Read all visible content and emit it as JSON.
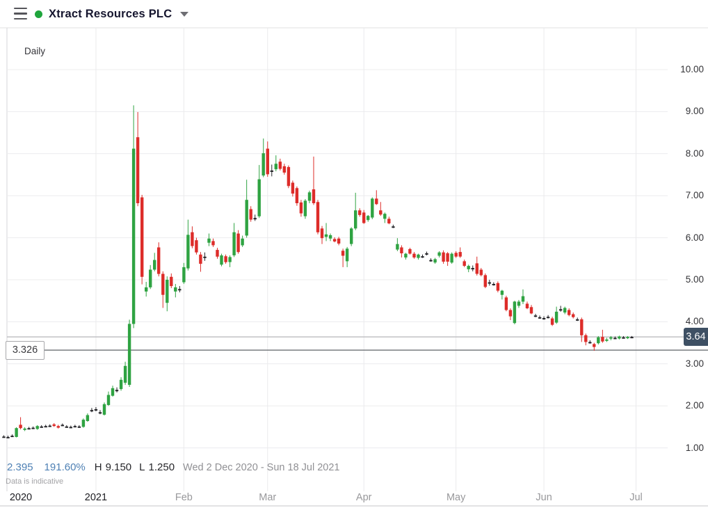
{
  "header": {
    "title": "Xtract Resources PLC",
    "status_dot_color": "#1fa53c"
  },
  "chart": {
    "interval_label": "Daily",
    "last_price_label": "3.64",
    "level_label": "3.326"
  },
  "status_bar": {
    "change_abs": "2.395",
    "change_pct": "191.60%",
    "high_label": "H",
    "high": "9.150",
    "low_label": "L",
    "low": "1.250",
    "date_range": "Wed 2 Dec 2020 - Sun 18 Jul 2021",
    "note": "Data is indicative"
  },
  "chart_data": {
    "type": "candlestick",
    "title": "Xtract Resources PLC",
    "interval": "Daily",
    "date_range": "Wed 2 Dec 2020 - Sun 18 Jul 2021",
    "period_high": 9.15,
    "period_low": 1.25,
    "last_price": 3.64,
    "indicative_level": 3.326,
    "grid": true,
    "y_axis": {
      "min": 1,
      "max": 10,
      "ticks": [
        10,
        9,
        8,
        7,
        6,
        5,
        4,
        3,
        2,
        1
      ],
      "tick_labels": [
        "10.00",
        "9.00",
        "8.00",
        "7.00",
        "6.00",
        "5.00",
        "4.00",
        "3.00",
        "2.00",
        "1.00"
      ]
    },
    "x_axis": {
      "boundaries": [
        {
          "label": "2020",
          "index": 0,
          "bold": true,
          "gridline": false,
          "label_x": 30
        },
        {
          "label": "2021",
          "index": 22,
          "bold": true,
          "gridline": true
        },
        {
          "label": "Feb",
          "index": 43,
          "bold": false,
          "gridline": true
        },
        {
          "label": "Mar",
          "index": 63,
          "bold": false,
          "gridline": true
        },
        {
          "label": "Apr",
          "index": 86,
          "bold": false,
          "gridline": true
        },
        {
          "label": "May",
          "index": 108,
          "bold": false,
          "gridline": true
        },
        {
          "label": "Jun",
          "index": 129,
          "bold": false,
          "gridline": true
        },
        {
          "label": "Jul",
          "index": 151,
          "bold": false,
          "gridline": true
        }
      ]
    },
    "colors": {
      "up": "#2fa342",
      "down": "#dd2c29",
      "neutral": "#26262a",
      "grid": "#ececee",
      "last_price_line": "#b6b6ba",
      "level_line": "#5f6267"
    },
    "candles_format": [
      "open",
      "high",
      "low",
      "close"
    ],
    "candles": [
      [
        1.27,
        1.3,
        1.25,
        1.27
      ],
      [
        1.26,
        1.29,
        1.25,
        1.26
      ],
      [
        1.29,
        1.32,
        1.26,
        1.29
      ],
      [
        1.26,
        1.49,
        1.25,
        1.47
      ],
      [
        1.55,
        1.73,
        1.44,
        1.47
      ],
      [
        1.43,
        1.49,
        1.4,
        1.46
      ],
      [
        1.47,
        1.5,
        1.44,
        1.47
      ],
      [
        1.48,
        1.51,
        1.45,
        1.48
      ],
      [
        1.45,
        1.54,
        1.43,
        1.52
      ],
      [
        1.51,
        1.54,
        1.48,
        1.51
      ],
      [
        1.52,
        1.55,
        1.49,
        1.52
      ],
      [
        1.53,
        1.56,
        1.5,
        1.53
      ],
      [
        1.56,
        1.59,
        1.5,
        1.52
      ],
      [
        1.52,
        1.55,
        1.46,
        1.48
      ],
      [
        1.55,
        1.58,
        1.52,
        1.55
      ],
      [
        1.51,
        1.54,
        1.48,
        1.51
      ],
      [
        1.5,
        1.53,
        1.47,
        1.5
      ],
      [
        1.52,
        1.55,
        1.49,
        1.52
      ],
      [
        1.51,
        1.54,
        1.48,
        1.51
      ],
      [
        1.5,
        1.7,
        1.48,
        1.67
      ],
      [
        1.64,
        1.82,
        1.62,
        1.78
      ],
      [
        1.9,
        1.95,
        1.85,
        1.9
      ],
      [
        1.92,
        1.97,
        1.87,
        1.92
      ],
      [
        1.85,
        1.9,
        1.8,
        1.85
      ],
      [
        1.79,
        2.08,
        1.77,
        2.04
      ],
      [
        2.02,
        2.34,
        2.0,
        2.26
      ],
      [
        2.24,
        2.48,
        2.22,
        2.42
      ],
      [
        2.38,
        2.44,
        2.32,
        2.38
      ],
      [
        2.4,
        2.68,
        2.36,
        2.62
      ],
      [
        2.55,
        3.05,
        2.5,
        2.95
      ],
      [
        2.5,
        4.05,
        2.45,
        3.95
      ],
      [
        3.95,
        9.15,
        3.85,
        8.12
      ],
      [
        8.39,
        8.99,
        6.75,
        6.82
      ],
      [
        6.96,
        7.02,
        4.89,
        5.07
      ],
      [
        4.72,
        4.95,
        4.6,
        4.82
      ],
      [
        4.82,
        5.35,
        4.78,
        5.24
      ],
      [
        5.24,
        5.64,
        5.2,
        5.47
      ],
      [
        5.77,
        5.89,
        5.08,
        5.14
      ],
      [
        5.14,
        5.2,
        4.33,
        4.64
      ],
      [
        4.45,
        5.08,
        4.25,
        5.0
      ],
      [
        5.07,
        5.15,
        4.8,
        4.85
      ],
      [
        4.72,
        4.9,
        4.58,
        4.82
      ],
      [
        4.78,
        4.85,
        4.7,
        4.78
      ],
      [
        4.94,
        5.4,
        4.9,
        5.3
      ],
      [
        5.27,
        6.43,
        5.22,
        6.07
      ],
      [
        6.13,
        6.27,
        5.75,
        5.8
      ],
      [
        5.94,
        6.0,
        5.6,
        5.65
      ],
      [
        5.6,
        5.66,
        5.19,
        5.38
      ],
      [
        5.55,
        5.65,
        5.45,
        5.55
      ],
      [
        5.88,
        6.1,
        5.8,
        5.98
      ],
      [
        5.92,
        5.98,
        5.78,
        5.82
      ],
      [
        5.71,
        5.76,
        5.5,
        5.55
      ],
      [
        5.36,
        5.62,
        5.32,
        5.58
      ],
      [
        5.56,
        5.6,
        5.38,
        5.42
      ],
      [
        5.42,
        5.58,
        5.3,
        5.54
      ],
      [
        5.58,
        6.35,
        5.54,
        6.13
      ],
      [
        6.1,
        6.18,
        5.62,
        5.66
      ],
      [
        5.82,
        6.05,
        5.78,
        5.98
      ],
      [
        6.05,
        7.38,
        6.0,
        6.9
      ],
      [
        6.68,
        6.75,
        6.38,
        6.43
      ],
      [
        6.47,
        6.55,
        6.4,
        6.47
      ],
      [
        6.51,
        7.73,
        6.47,
        7.39
      ],
      [
        7.48,
        8.36,
        7.44,
        8.01
      ],
      [
        8.12,
        8.29,
        7.45,
        7.51
      ],
      [
        7.6,
        7.74,
        7.46,
        7.6
      ],
      [
        7.63,
        7.96,
        7.58,
        7.76
      ],
      [
        7.81,
        7.88,
        7.6,
        7.64
      ],
      [
        7.7,
        7.76,
        7.5,
        7.55
      ],
      [
        7.68,
        7.72,
        7.18,
        7.23
      ],
      [
        7.31,
        7.36,
        6.98,
        7.05
      ],
      [
        7.18,
        7.22,
        6.76,
        6.82
      ],
      [
        6.84,
        6.9,
        6.5,
        6.58
      ],
      [
        6.51,
        6.92,
        6.45,
        6.88
      ],
      [
        6.88,
        7.12,
        6.82,
        7.08
      ],
      [
        7.15,
        7.93,
        6.78,
        6.82
      ],
      [
        6.85,
        6.9,
        6.08,
        6.13
      ],
      [
        6.22,
        6.28,
        5.85,
        5.99
      ],
      [
        6.02,
        6.35,
        5.92,
        6.08
      ],
      [
        5.98,
        6.1,
        5.92,
        6.06
      ],
      [
        5.97,
        6.01,
        5.89,
        5.91
      ],
      [
        5.98,
        6.02,
        5.82,
        5.86
      ],
      [
        5.69,
        5.74,
        5.3,
        5.57
      ],
      [
        5.44,
        5.78,
        5.3,
        5.74
      ],
      [
        5.85,
        6.25,
        5.8,
        6.22
      ],
      [
        6.22,
        7.07,
        6.18,
        6.65
      ],
      [
        6.65,
        6.7,
        6.5,
        6.54
      ],
      [
        6.6,
        6.66,
        6.33,
        6.35
      ],
      [
        6.42,
        6.54,
        6.38,
        6.52
      ],
      [
        6.48,
        6.96,
        6.44,
        6.93
      ],
      [
        6.93,
        7.13,
        6.78,
        6.8
      ],
      [
        6.65,
        6.85,
        6.52,
        6.55
      ],
      [
        6.45,
        6.6,
        6.35,
        6.57
      ],
      [
        6.45,
        6.5,
        6.32,
        6.34
      ],
      [
        6.27,
        6.31,
        6.23,
        6.27
      ],
      [
        5.72,
        5.99,
        5.68,
        5.85
      ],
      [
        5.77,
        5.82,
        5.53,
        5.63
      ],
      [
        5.53,
        5.64,
        5.48,
        5.62
      ],
      [
        5.73,
        5.76,
        5.6,
        5.62
      ],
      [
        5.62,
        5.66,
        5.5,
        5.53
      ],
      [
        5.52,
        5.62,
        5.48,
        5.6
      ],
      [
        5.56,
        5.6,
        5.52,
        5.56
      ],
      [
        5.63,
        5.67,
        5.58,
        5.63
      ],
      [
        5.47,
        5.51,
        5.43,
        5.47
      ],
      [
        5.41,
        5.52,
        5.38,
        5.49
      ],
      [
        5.57,
        5.68,
        5.53,
        5.65
      ],
      [
        5.65,
        5.7,
        5.38,
        5.43
      ],
      [
        5.63,
        5.66,
        5.33,
        5.43
      ],
      [
        5.41,
        5.65,
        5.38,
        5.62
      ],
      [
        5.64,
        5.68,
        5.52,
        5.55
      ],
      [
        5.66,
        5.77,
        5.52,
        5.55
      ],
      [
        5.44,
        5.48,
        5.3,
        5.33
      ],
      [
        5.25,
        5.36,
        5.18,
        5.33
      ],
      [
        5.28,
        5.34,
        5.2,
        5.28
      ],
      [
        5.39,
        5.55,
        5.1,
        5.14
      ],
      [
        5.24,
        5.28,
        5.08,
        5.11
      ],
      [
        5.11,
        5.15,
        4.8,
        4.83
      ],
      [
        4.94,
        5.0,
        4.86,
        4.94
      ],
      [
        4.9,
        4.94,
        4.86,
        4.9
      ],
      [
        4.92,
        4.96,
        4.7,
        4.74
      ],
      [
        4.64,
        4.76,
        4.53,
        4.74
      ],
      [
        4.58,
        4.62,
        4.25,
        4.28
      ],
      [
        4.28,
        4.32,
        4.04,
        4.13
      ],
      [
        3.97,
        4.5,
        3.94,
        4.48
      ],
      [
        4.38,
        4.52,
        4.33,
        4.48
      ],
      [
        4.48,
        4.77,
        4.42,
        4.61
      ],
      [
        4.43,
        4.48,
        4.3,
        4.32
      ],
      [
        4.35,
        4.4,
        4.18,
        4.2
      ],
      [
        4.15,
        4.19,
        4.11,
        4.15
      ],
      [
        4.11,
        4.15,
        4.07,
        4.11
      ],
      [
        4.09,
        4.13,
        4.05,
        4.09
      ],
      [
        4.12,
        4.16,
        4.08,
        4.12
      ],
      [
        4.08,
        4.12,
        3.9,
        3.93
      ],
      [
        3.98,
        4.36,
        3.95,
        4.24
      ],
      [
        4.3,
        4.38,
        4.24,
        4.3
      ],
      [
        4.22,
        4.36,
        4.18,
        4.33
      ],
      [
        4.28,
        4.32,
        4.13,
        4.16
      ],
      [
        4.18,
        4.22,
        4.08,
        4.11
      ],
      [
        4.06,
        4.1,
        4.02,
        4.06
      ],
      [
        4.06,
        4.1,
        3.52,
        3.68
      ],
      [
        3.68,
        3.72,
        3.44,
        3.52
      ],
      [
        3.52,
        3.56,
        3.48,
        3.52
      ],
      [
        3.47,
        3.5,
        3.31,
        3.4
      ],
      [
        3.49,
        3.66,
        3.46,
        3.63
      ],
      [
        3.64,
        3.81,
        3.5,
        3.53
      ],
      [
        3.56,
        3.62,
        3.52,
        3.58
      ],
      [
        3.6,
        3.66,
        3.56,
        3.63
      ],
      [
        3.62,
        3.65,
        3.59,
        3.62
      ],
      [
        3.6,
        3.67,
        3.58,
        3.65
      ],
      [
        3.63,
        3.66,
        3.6,
        3.63
      ],
      [
        3.62,
        3.66,
        3.59,
        3.64
      ],
      [
        3.64,
        3.66,
        3.61,
        3.64
      ]
    ]
  }
}
